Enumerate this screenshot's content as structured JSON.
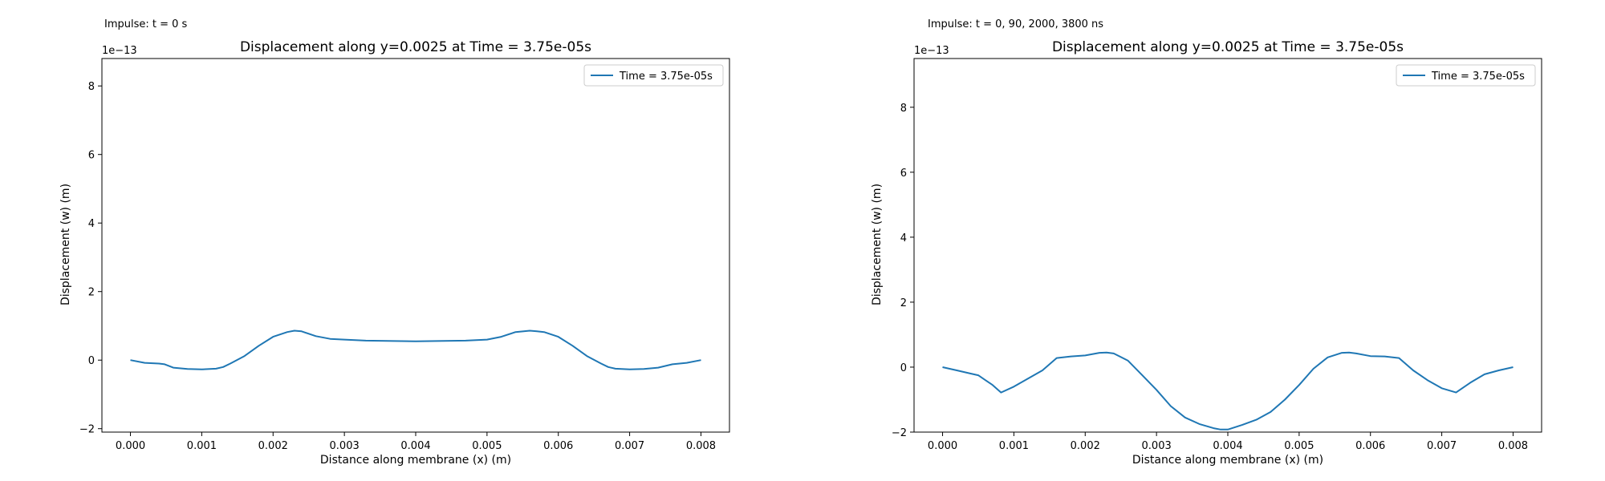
{
  "colors": {
    "series": "#1f77b4",
    "axes": "#000000",
    "legend_border": "#cccccc",
    "background": "#ffffff"
  },
  "chart_data": [
    {
      "type": "line",
      "annotation": "Impulse: t = 0 s",
      "title": "Displacement along y=0.0025 at Time = 3.75e-05s",
      "xlabel": "Distance along membrane (x) (m)",
      "ylabel": "Displacement (w) (m)",
      "y_scale_label": "1e−13",
      "xlim": [
        -0.0004,
        0.0084
      ],
      "ylim": [
        -2.1,
        8.8
      ],
      "x_ticks": [
        0.0,
        0.001,
        0.002,
        0.003,
        0.004,
        0.005,
        0.006,
        0.007,
        0.008
      ],
      "x_tick_labels": [
        "0.000",
        "0.001",
        "0.002",
        "0.003",
        "0.004",
        "0.005",
        "0.006",
        "0.007",
        "0.008"
      ],
      "y_ticks": [
        -2,
        0,
        2,
        4,
        6,
        8
      ],
      "y_tick_labels": [
        "−2",
        "0",
        "2",
        "4",
        "6",
        "8"
      ],
      "grid": false,
      "legend": {
        "position": "top-right",
        "entries": [
          "Time = 3.75e-05s"
        ]
      },
      "series": [
        {
          "name": "Time = 3.75e-05s",
          "x": [
            0.0,
            0.0002,
            0.0004,
            0.00048,
            0.0006,
            0.0008,
            0.001,
            0.0012,
            0.0013,
            0.0014,
            0.0016,
            0.0018,
            0.002,
            0.0022,
            0.0023,
            0.0024,
            0.0026,
            0.0028,
            0.003,
            0.0033,
            0.0036,
            0.004,
            0.0044,
            0.0047,
            0.005,
            0.0052,
            0.0054,
            0.0056,
            0.0057,
            0.0058,
            0.006,
            0.0062,
            0.0064,
            0.0066,
            0.0067,
            0.0068,
            0.007,
            0.0072,
            0.0074,
            0.0076,
            0.0078,
            0.008
          ],
          "values": [
            0.0,
            -0.08,
            -0.1,
            -0.12,
            -0.22,
            -0.26,
            -0.27,
            -0.25,
            -0.2,
            -0.1,
            0.12,
            0.42,
            0.68,
            0.82,
            0.86,
            0.84,
            0.7,
            0.62,
            0.6,
            0.57,
            0.56,
            0.55,
            0.56,
            0.57,
            0.6,
            0.68,
            0.82,
            0.86,
            0.84,
            0.82,
            0.68,
            0.42,
            0.12,
            -0.1,
            -0.2,
            -0.25,
            -0.27,
            -0.26,
            -0.22,
            -0.12,
            -0.08,
            0.0
          ]
        }
      ]
    },
    {
      "type": "line",
      "annotation": "Impulse: t = 0, 90, 2000, 3800 ns",
      "title": "Displacement along y=0.0025 at Time = 3.75e-05s",
      "xlabel": "Distance along membrane (x) (m)",
      "ylabel": "Displacement (w) (m)",
      "y_scale_label": "1e−13",
      "xlim": [
        -0.0004,
        0.0084
      ],
      "ylim": [
        -2.0,
        9.5
      ],
      "x_ticks": [
        0.0,
        0.001,
        0.002,
        0.003,
        0.004,
        0.005,
        0.006,
        0.007,
        0.008
      ],
      "x_tick_labels": [
        "0.000",
        "0.001",
        "0.002",
        "0.003",
        "0.004",
        "0.005",
        "0.006",
        "0.007",
        "0.008"
      ],
      "y_ticks": [
        -2,
        0,
        2,
        4,
        6,
        8
      ],
      "y_tick_labels": [
        "−2",
        "0",
        "2",
        "4",
        "6",
        "8"
      ],
      "grid": false,
      "legend": {
        "position": "top-right",
        "entries": [
          "Time = 3.75e-05s"
        ]
      },
      "series": [
        {
          "name": "Time = 3.75e-05s",
          "x": [
            0.0,
            0.0002,
            0.0004,
            0.0005,
            0.0006,
            0.0007,
            0.00082,
            0.001,
            0.0012,
            0.0014,
            0.0016,
            0.0018,
            0.002,
            0.0022,
            0.0023,
            0.0024,
            0.0026,
            0.0028,
            0.003,
            0.0032,
            0.0034,
            0.0036,
            0.0038,
            0.0039,
            0.004,
            0.0042,
            0.0044,
            0.0046,
            0.0048,
            0.005,
            0.0052,
            0.0054,
            0.0056,
            0.0057,
            0.0058,
            0.006,
            0.0062,
            0.0064,
            0.0066,
            0.0068,
            0.007,
            0.0072,
            0.0074,
            0.0076,
            0.0078,
            0.008
          ],
          "values": [
            0.0,
            -0.1,
            -0.2,
            -0.25,
            -0.4,
            -0.55,
            -0.78,
            -0.6,
            -0.35,
            -0.1,
            0.28,
            0.33,
            0.36,
            0.44,
            0.45,
            0.42,
            0.2,
            -0.25,
            -0.7,
            -1.2,
            -1.55,
            -1.75,
            -1.88,
            -1.92,
            -1.92,
            -1.78,
            -1.62,
            -1.38,
            -1.0,
            -0.55,
            -0.05,
            0.3,
            0.44,
            0.45,
            0.42,
            0.34,
            0.33,
            0.28,
            -0.1,
            -0.4,
            -0.65,
            -0.78,
            -0.48,
            -0.22,
            -0.1,
            0.0
          ]
        }
      ]
    }
  ]
}
